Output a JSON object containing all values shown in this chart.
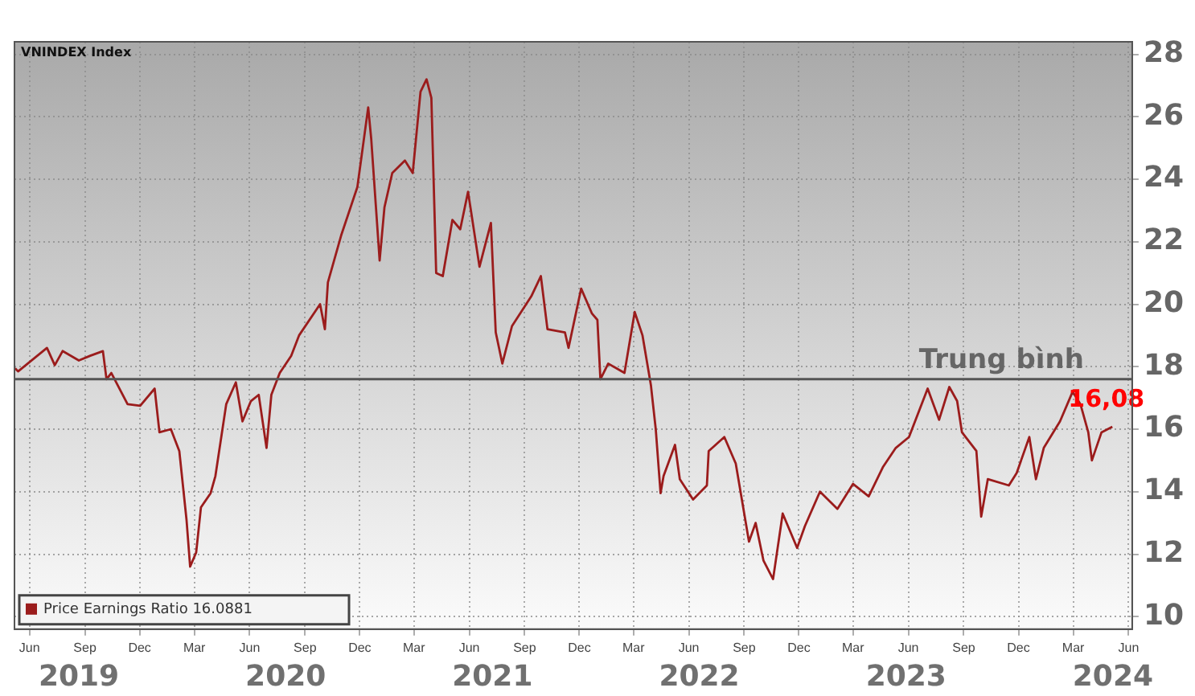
{
  "chart_data": {
    "type": "line",
    "x": [
      "2019-05-08",
      "2019-05-13",
      "2019-06-30",
      "2019-07-13",
      "2019-07-26",
      "2019-08-22",
      "2019-09-10",
      "2019-10-01",
      "2019-10-07",
      "2019-10-15",
      "2019-11-11",
      "2019-12-02",
      "2019-12-26",
      "2020-01-03",
      "2020-01-22",
      "2020-02-05",
      "2020-02-17",
      "2020-02-23",
      "2020-03-04",
      "2020-03-12",
      "2020-03-28",
      "2020-04-05",
      "2020-04-23",
      "2020-05-09",
      "2020-05-20",
      "2020-06-03",
      "2020-06-16",
      "2020-06-29",
      "2020-07-07",
      "2020-07-21",
      "2020-08-09",
      "2020-08-22",
      "2020-09-26",
      "2020-10-04",
      "2020-10-09",
      "2020-10-31",
      "2020-11-27",
      "2020-12-15",
      "2020-12-20",
      "2021-01-03",
      "2021-01-11",
      "2021-01-24",
      "2021-02-14",
      "2021-02-27",
      "2021-03-12",
      "2021-03-22",
      "2021-03-30",
      "2021-04-07",
      "2021-04-18",
      "2021-05-04",
      "2021-05-17",
      "2021-05-30",
      "2021-06-18",
      "2021-07-07",
      "2021-07-15",
      "2021-07-26",
      "2021-08-11",
      "2021-09-12",
      "2021-09-28",
      "2021-10-09",
      "2021-11-07",
      "2021-11-13",
      "2021-12-04",
      "2021-12-22",
      "2021-12-31",
      "2022-01-05",
      "2022-01-18",
      "2022-02-14",
      "2022-03-03",
      "2022-03-16",
      "2022-03-30",
      "2022-04-07",
      "2022-04-15",
      "2022-04-20",
      "2022-05-09",
      "2022-05-17",
      "2022-06-08",
      "2022-07-01",
      "2022-07-04",
      "2022-07-30",
      "2022-08-18",
      "2022-09-09",
      "2022-09-20",
      "2022-10-03",
      "2022-10-19",
      "2022-11-04",
      "2022-11-28",
      "2022-12-11",
      "2023-01-05",
      "2023-02-03",
      "2023-03-01",
      "2023-03-27",
      "2023-04-20",
      "2023-05-11",
      "2023-06-02",
      "2023-07-03",
      "2023-07-22",
      "2023-08-08",
      "2023-08-21",
      "2023-08-29",
      "2023-09-22",
      "2023-09-30",
      "2023-10-11",
      "2023-11-15",
      "2023-11-28",
      "2023-12-19",
      "2023-12-30",
      "2024-01-12",
      "2024-02-08",
      "2024-02-29",
      "2024-03-13",
      "2024-03-26",
      "2024-04-01",
      "2024-04-17",
      "2024-05-05"
    ],
    "series": [
      {
        "name": "Price Earnings Ratio 16.0881",
        "color": "#9b1c1c",
        "values": [
          17.95,
          17.85,
          18.6,
          18.05,
          18.5,
          18.2,
          18.35,
          18.5,
          17.6,
          17.8,
          16.8,
          16.75,
          17.3,
          15.9,
          16.0,
          15.3,
          13.1,
          11.6,
          12.05,
          13.5,
          13.95,
          14.5,
          16.8,
          17.5,
          16.25,
          16.9,
          17.1,
          15.4,
          17.1,
          17.8,
          18.35,
          19.0,
          20.0,
          19.2,
          20.7,
          22.2,
          23.75,
          26.3,
          25.3,
          21.4,
          23.1,
          24.2,
          24.6,
          24.2,
          26.8,
          27.2,
          26.6,
          21.0,
          20.9,
          22.7,
          22.4,
          23.6,
          21.2,
          22.6,
          19.1,
          18.1,
          19.3,
          20.25,
          20.9,
          19.2,
          19.1,
          18.6,
          20.5,
          19.7,
          19.5,
          17.6,
          18.1,
          17.8,
          19.75,
          19.0,
          17.4,
          16.0,
          13.95,
          14.5,
          15.5,
          14.4,
          13.75,
          14.2,
          15.3,
          15.75,
          14.9,
          12.4,
          13.0,
          11.8,
          11.2,
          13.3,
          12.2,
          12.9,
          14.0,
          13.45,
          14.25,
          13.85,
          14.8,
          15.4,
          15.75,
          17.3,
          16.3,
          17.35,
          16.9,
          15.9,
          15.3,
          13.2,
          14.4,
          14.2,
          14.6,
          15.75,
          14.4,
          15.4,
          16.25,
          17.2,
          16.8,
          15.9,
          15.0,
          15.9,
          16.08
        ]
      }
    ],
    "xlim": [
      "2019-05-07",
      "2024-06-07"
    ],
    "xticks": [
      {
        "value": "2019-06-01",
        "label": "Jun"
      },
      {
        "value": "2019-09-01",
        "label": "Sep"
      },
      {
        "value": "2019-12-01",
        "label": "Dec"
      },
      {
        "value": "2020-03-01",
        "label": "Mar"
      },
      {
        "value": "2020-06-01",
        "label": "Jun"
      },
      {
        "value": "2020-09-01",
        "label": "Sep"
      },
      {
        "value": "2020-12-01",
        "label": "Dec"
      },
      {
        "value": "2021-03-01",
        "label": "Mar"
      },
      {
        "value": "2021-06-01",
        "label": "Jun"
      },
      {
        "value": "2021-09-01",
        "label": "Sep"
      },
      {
        "value": "2021-12-01",
        "label": "Dec"
      },
      {
        "value": "2022-03-01",
        "label": "Mar"
      },
      {
        "value": "2022-06-01",
        "label": "Jun"
      },
      {
        "value": "2022-09-01",
        "label": "Sep"
      },
      {
        "value": "2022-12-01",
        "label": "Dec"
      },
      {
        "value": "2023-03-01",
        "label": "Mar"
      },
      {
        "value": "2023-06-01",
        "label": "Jun"
      },
      {
        "value": "2023-09-01",
        "label": "Sep"
      },
      {
        "value": "2023-12-01",
        "label": "Dec"
      },
      {
        "value": "2024-03-01",
        "label": "Mar"
      },
      {
        "value": "2024-06-01",
        "label": "Jun"
      }
    ],
    "ylim": [
      9.6,
      28.4
    ],
    "yticks": [
      10,
      12,
      14,
      16,
      18,
      20,
      22,
      24,
      26,
      28
    ],
    "grid": true,
    "legend": "bottom left",
    "marker": "none",
    "line_style": "solid",
    "ref_lines": [
      {
        "axis": "y",
        "value": 17.6,
        "label": "Trung bình",
        "color": "#555555"
      }
    ],
    "annotations": [
      "VNINDEX Index",
      {
        "text": "16,08",
        "x": "2024-05-05",
        "y": 16.08
      },
      "2019",
      "2020",
      "2021",
      "2022",
      "2023",
      "2024"
    ]
  }
}
